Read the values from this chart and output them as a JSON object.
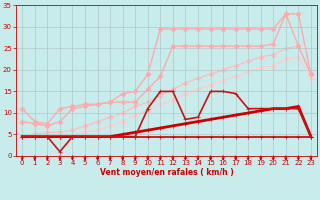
{
  "background_color": "#c8ecec",
  "grid_color": "#b0c8c8",
  "xlabel": "Vent moyen/en rafales ( km/h )",
  "xlim": [
    -0.5,
    23.5
  ],
  "ylim": [
    0,
    35
  ],
  "yticks": [
    0,
    5,
    10,
    15,
    20,
    25,
    30,
    35
  ],
  "xticks": [
    0,
    1,
    2,
    3,
    4,
    5,
    6,
    7,
    8,
    9,
    10,
    11,
    12,
    13,
    14,
    15,
    16,
    17,
    18,
    19,
    20,
    21,
    22,
    23
  ],
  "lines": [
    {
      "y": [
        4.5,
        4.5,
        4.5,
        4.5,
        4.5,
        4.5,
        4.5,
        4.5,
        4.5,
        4.5,
        4.5,
        4.5,
        4.5,
        4.5,
        4.5,
        4.5,
        4.5,
        4.5,
        4.5,
        4.5,
        4.5,
        4.5,
        4.5,
        4.5
      ],
      "color": "#cc0000",
      "linewidth": 1.2,
      "marker": "+",
      "markersize": 3.5,
      "zorder": 5
    },
    {
      "y": [
        4.5,
        4.5,
        4.5,
        4.5,
        4.5,
        4.5,
        4.5,
        4.5,
        5.0,
        5.5,
        6.0,
        6.5,
        7.0,
        7.5,
        8.0,
        8.5,
        9.0,
        9.5,
        10.0,
        10.5,
        11.0,
        11.0,
        11.5,
        4.5
      ],
      "color": "#cc0000",
      "linewidth": 2.0,
      "marker": "+",
      "markersize": 3.5,
      "zorder": 4
    },
    {
      "y": [
        4.5,
        4.5,
        4.5,
        1.0,
        4.5,
        4.5,
        4.5,
        4.5,
        4.5,
        4.5,
        11.0,
        15.0,
        15.0,
        8.5,
        9.0,
        15.0,
        15.0,
        14.5,
        11.0,
        11.0,
        11.0,
        11.0,
        11.0,
        4.5
      ],
      "color": "#cc1111",
      "linewidth": 1.2,
      "marker": "+",
      "markersize": 3.5,
      "zorder": 5
    },
    {
      "y": [
        11.0,
        8.0,
        7.5,
        11.0,
        11.5,
        12.0,
        12.0,
        12.5,
        14.5,
        15.0,
        19.0,
        29.5,
        29.5,
        29.5,
        29.5,
        29.5,
        29.5,
        29.5,
        29.5,
        29.5,
        29.5,
        33.0,
        33.0,
        19.0
      ],
      "color": "#ffaaaa",
      "linewidth": 1.0,
      "marker": "D",
      "markersize": 2.5,
      "zorder": 2
    },
    {
      "y": [
        8.0,
        7.5,
        7.0,
        8.0,
        11.0,
        11.5,
        12.0,
        12.5,
        12.5,
        12.5,
        15.5,
        18.5,
        25.5,
        25.5,
        25.5,
        25.5,
        25.5,
        25.5,
        25.5,
        25.5,
        26.0,
        33.0,
        25.5,
        19.0
      ],
      "color": "#ffaaaa",
      "linewidth": 1.0,
      "marker": "D",
      "markersize": 2.5,
      "zorder": 2
    },
    {
      "y": [
        4.5,
        5.0,
        5.5,
        5.5,
        6.0,
        7.0,
        8.0,
        9.0,
        10.0,
        11.5,
        12.5,
        14.0,
        15.5,
        17.0,
        18.0,
        19.0,
        20.0,
        21.0,
        22.0,
        23.0,
        23.5,
        25.0,
        25.5,
        19.0
      ],
      "color": "#ffbbbb",
      "linewidth": 0.9,
      "marker": "D",
      "markersize": 2.5,
      "zorder": 1
    },
    {
      "y": [
        4.5,
        4.5,
        4.5,
        4.5,
        5.0,
        5.5,
        6.0,
        7.0,
        8.0,
        9.5,
        10.5,
        12.0,
        13.0,
        14.5,
        15.5,
        16.5,
        17.5,
        18.5,
        19.5,
        20.5,
        21.0,
        22.5,
        23.0,
        18.0
      ],
      "color": "#ffcccc",
      "linewidth": 0.9,
      "marker": "D",
      "markersize": 2.5,
      "zorder": 1
    }
  ],
  "wind_arrow_angles": [
    45,
    55,
    65,
    70,
    95,
    95,
    100,
    100,
    90,
    90,
    90,
    90,
    90,
    90,
    90,
    90,
    90,
    90,
    90,
    90,
    90,
    90,
    95,
    100
  ]
}
